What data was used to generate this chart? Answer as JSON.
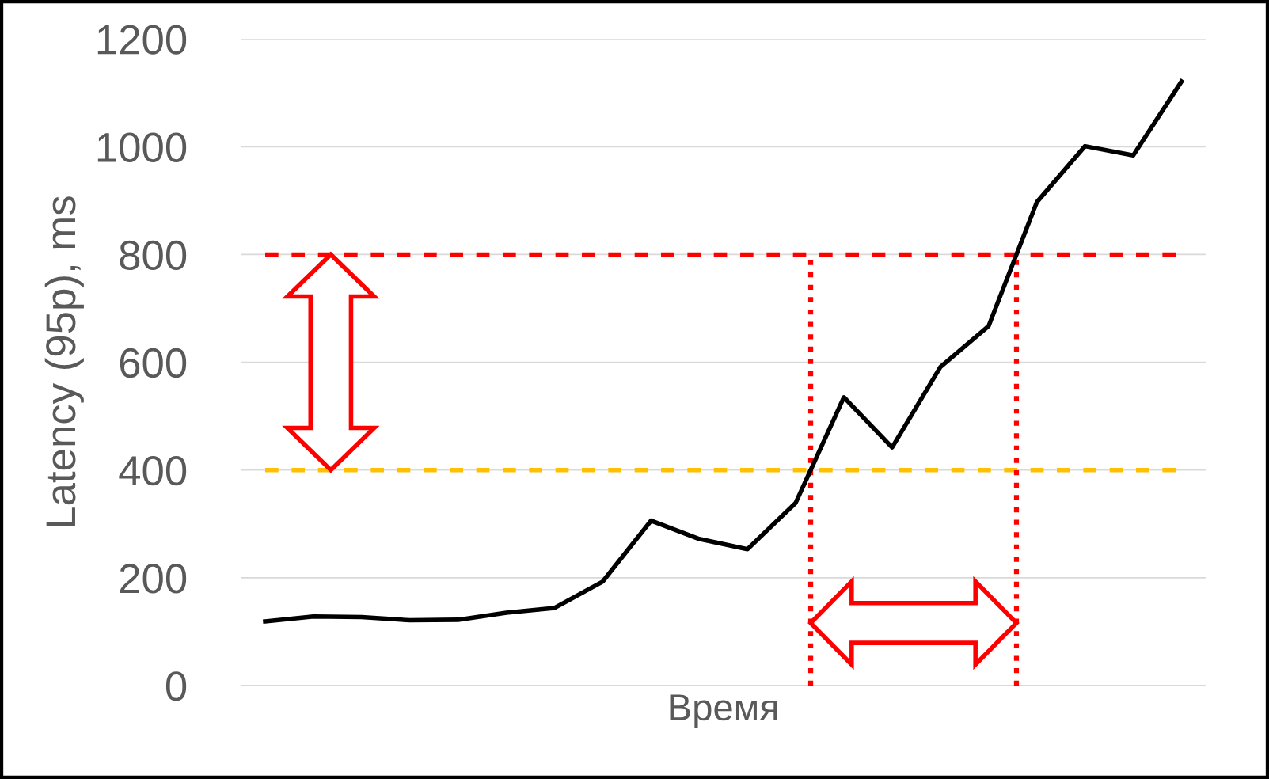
{
  "chart_data": {
    "type": "line",
    "xlabel": "Время",
    "ylabel": "Latency (95p), ms",
    "categories": [
      null,
      null,
      null,
      null,
      null,
      null,
      null,
      null,
      null,
      null,
      null,
      null,
      null,
      null,
      null,
      null,
      null,
      null,
      null,
      null
    ],
    "ylim": [
      0,
      1200
    ],
    "yticks": [
      0,
      200,
      400,
      600,
      800,
      1000,
      1200
    ],
    "grid": "y",
    "series": [
      {
        "color": "#000000",
        "values": [
          119,
          128,
          127,
          121,
          122,
          135,
          144,
          193,
          306,
          272,
          253,
          339,
          535,
          442,
          591,
          667,
          897,
          1001,
          984,
          1121
        ]
      }
    ],
    "ref_lines": [
      {
        "axis": "y",
        "value": 800,
        "color": "#ff0000",
        "line_style": "dashed"
      },
      {
        "axis": "y",
        "value": 400,
        "color": "#ffc000",
        "line_style": "dashed"
      }
    ]
  }
}
